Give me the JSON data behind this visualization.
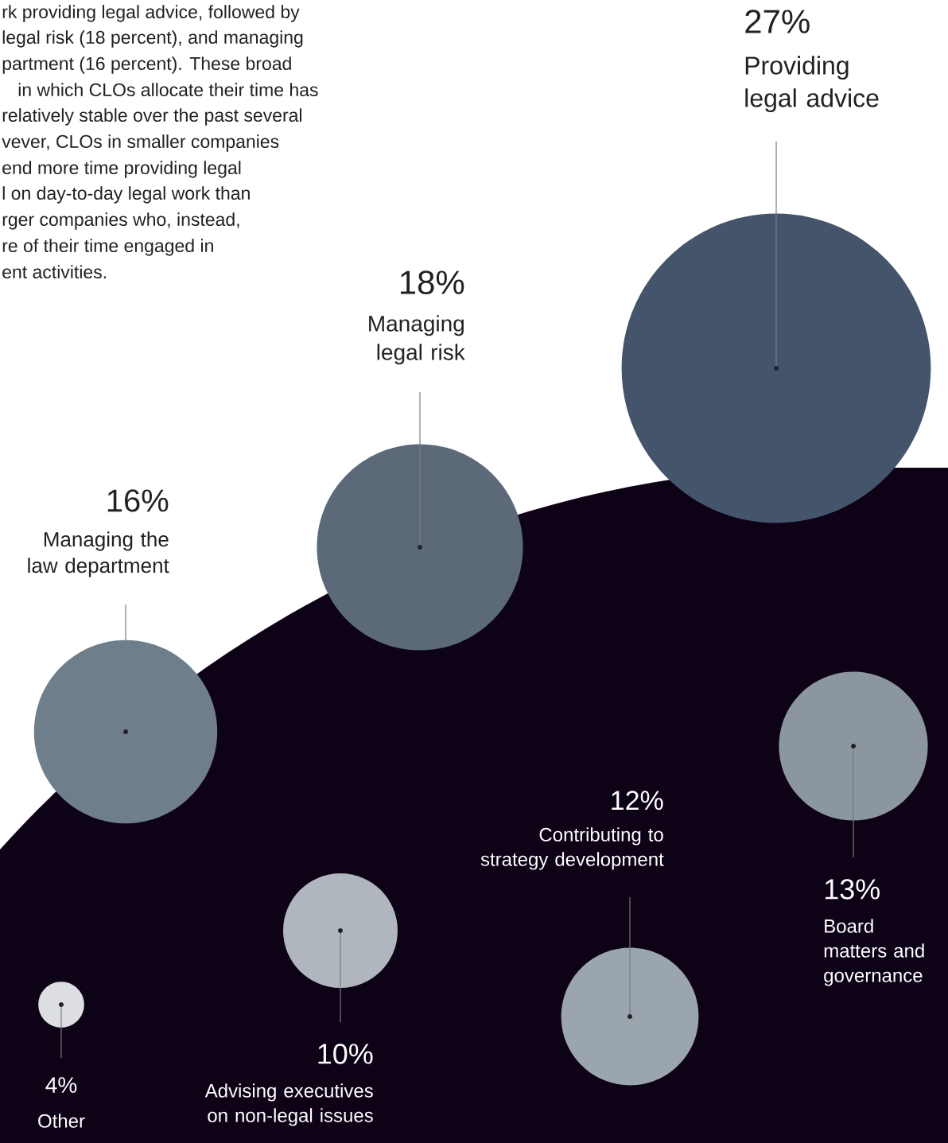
{
  "chart_data": {
    "type": "other",
    "categories": [
      "Providing legal advice",
      "Managing legal risk",
      "Managing the law department",
      "Board matters and governance",
      "Contributing to strategy development",
      "Advising executives on non-legal issues",
      "Other"
    ],
    "values": [
      27,
      18,
      16,
      13,
      12,
      10,
      4
    ],
    "value_labels": [
      "27%",
      "18%",
      "16%",
      "13%",
      "12%",
      "10%",
      "4%"
    ],
    "colors": [
      "#44546a",
      "#5b6979",
      "#6f7e8b",
      "#8b969f",
      "#9ba5ad",
      "#afb6bd",
      "#dcdee2"
    ],
    "annotations": [
      "rk providing legal advice, followed by",
      "legal risk (18 percent), and managing",
      "partment (16 percent). These broad",
      "in which CLOs allocate their time has",
      "relatively stable over the past several",
      "vever, CLOs in smaller companies",
      "end more time providing legal",
      "l on day-to-day legal work than",
      "rger companies who, instead,",
      "re of their time engaged in",
      "ent activities."
    ]
  }
}
